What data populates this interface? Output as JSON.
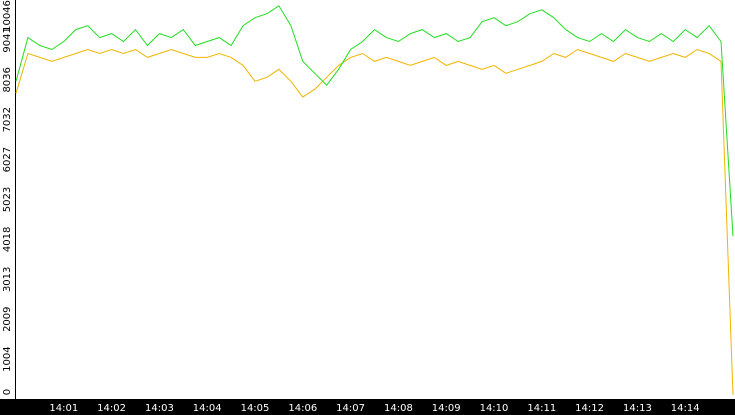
{
  "chart_data": {
    "type": "line",
    "categories": [
      null,
      null,
      null,
      null,
      "14:01",
      null,
      null,
      null,
      "14:02",
      null,
      null,
      null,
      "14:03",
      null,
      null,
      null,
      "14:04",
      null,
      null,
      null,
      "14:05",
      null,
      null,
      null,
      "14:06",
      null,
      null,
      null,
      "14:07",
      null,
      null,
      null,
      "14:08",
      null,
      null,
      null,
      "14:09",
      null,
      null,
      null,
      "14:10",
      null,
      null,
      null,
      "14:11",
      null,
      null,
      null,
      "14:12",
      null,
      null,
      null,
      "14:13",
      null,
      null,
      null,
      "14:14",
      null,
      null,
      null,
      null
    ],
    "series": [
      {
        "color": "#22dd22",
        "values": [
          8000,
          9100,
          8900,
          8800,
          9000,
          9300,
          9400,
          9100,
          9200,
          9000,
          9300,
          8900,
          9200,
          9100,
          9300,
          8900,
          9000,
          9100,
          8900,
          9400,
          9600,
          9700,
          9900,
          9400,
          8500,
          8200,
          7900,
          8300,
          8800,
          9000,
          9300,
          9100,
          9000,
          9200,
          9300,
          9100,
          9200,
          9000,
          9100,
          9500,
          9600,
          9400,
          9500,
          9700,
          9800,
          9600,
          9300,
          9100,
          9000,
          9200,
          9000,
          9300,
          9100,
          9000,
          9200,
          9000,
          9300,
          9100,
          9400,
          9000,
          4100
        ]
      },
      {
        "color": "#f0b400",
        "values": [
          7700,
          8700,
          8600,
          8500,
          8600,
          8700,
          8800,
          8700,
          8800,
          8700,
          8800,
          8600,
          8700,
          8800,
          8700,
          8600,
          8600,
          8700,
          8600,
          8400,
          8000,
          8100,
          8300,
          8000,
          7600,
          7800,
          8100,
          8400,
          8600,
          8700,
          8500,
          8600,
          8500,
          8400,
          8500,
          8600,
          8400,
          8500,
          8400,
          8300,
          8400,
          8200,
          8300,
          8400,
          8500,
          8700,
          8600,
          8800,
          8700,
          8600,
          8500,
          8700,
          8600,
          8500,
          8600,
          8700,
          8600,
          8800,
          8700,
          8500,
          100
        ]
      }
    ],
    "ylim": [
      0,
      10046
    ],
    "yticks": [
      0,
      1004,
      2009,
      3013,
      4018,
      5023,
      6027,
      7032,
      8036,
      9041,
      10046
    ]
  }
}
